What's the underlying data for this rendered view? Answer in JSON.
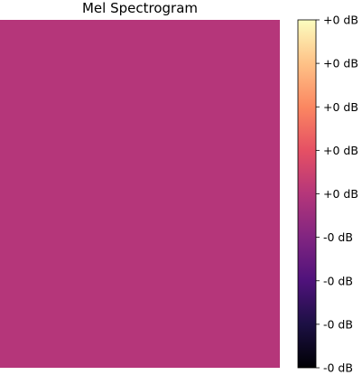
{
  "chart_data": {
    "type": "heatmap",
    "title": "Mel Spectrogram",
    "fill_color": "#b5367a",
    "colormap": "magma",
    "colormap_stops": [
      "#000004",
      "#1c1044",
      "#4f127b",
      "#812581",
      "#b5367a",
      "#e55064",
      "#fb8761",
      "#fec287",
      "#fcfdbf"
    ],
    "colorbar": {
      "tick_labels": [
        "+0 dB",
        "+0 dB",
        "+0 dB",
        "+0 dB",
        "+0 dB",
        "-0 dB",
        "-0 dB",
        "-0 dB",
        "-0 dB"
      ]
    }
  }
}
